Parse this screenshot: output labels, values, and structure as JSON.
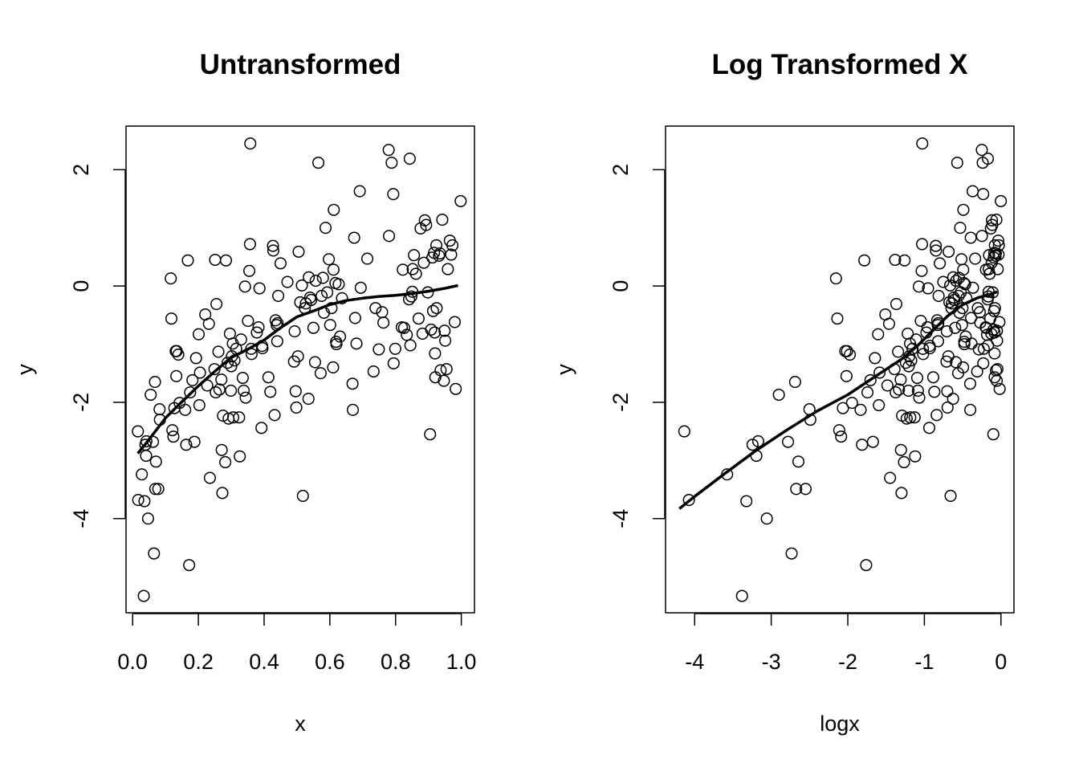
{
  "chart_data": [
    {
      "type": "scatter",
      "title": "Untransformed",
      "xlabel": "x",
      "ylabel": "y",
      "xlim": [
        -0.02,
        1.04
      ],
      "ylim": [
        -5.62,
        2.75
      ],
      "xticks": [
        0.0,
        0.2,
        0.4,
        0.6,
        0.8,
        1.0
      ],
      "xtick_labels": [
        "0.0",
        "0.2",
        "0.4",
        "0.6",
        "0.8",
        "1.0"
      ],
      "yticks": [
        -4,
        -2,
        0,
        2
      ],
      "ytick_labels": [
        "-4",
        "-2",
        "0",
        "2"
      ],
      "grid": false,
      "points": [
        [
          0.016,
          -2.5
        ],
        [
          0.017,
          -3.68
        ],
        [
          0.028,
          -3.24
        ],
        [
          0.034,
          -5.33
        ],
        [
          0.036,
          -3.7
        ],
        [
          0.039,
          -2.73
        ],
        [
          0.041,
          -2.92
        ],
        [
          0.042,
          -2.67
        ],
        [
          0.047,
          -4.0
        ],
        [
          0.055,
          -1.87
        ],
        [
          0.062,
          -2.68
        ],
        [
          0.065,
          -4.6
        ],
        [
          0.068,
          -1.65
        ],
        [
          0.069,
          -3.49
        ],
        [
          0.071,
          -3.02
        ],
        [
          0.078,
          -3.49
        ],
        [
          0.082,
          -2.12
        ],
        [
          0.083,
          -2.3
        ],
        [
          0.116,
          0.13
        ],
        [
          0.118,
          -0.56
        ],
        [
          0.121,
          -2.48
        ],
        [
          0.124,
          -2.59
        ],
        [
          0.127,
          -2.1
        ],
        [
          0.131,
          -1.12
        ],
        [
          0.133,
          -1.55
        ],
        [
          0.134,
          -1.12
        ],
        [
          0.139,
          -1.18
        ],
        [
          0.143,
          -2.01
        ],
        [
          0.16,
          -2.13
        ],
        [
          0.163,
          -2.73
        ],
        [
          0.168,
          0.44
        ],
        [
          0.172,
          -4.8
        ],
        [
          0.175,
          -1.83
        ],
        [
          0.182,
          -1.62
        ],
        [
          0.188,
          -2.68
        ],
        [
          0.193,
          -1.24
        ],
        [
          0.201,
          -0.83
        ],
        [
          0.203,
          -2.05
        ],
        [
          0.205,
          -1.49
        ],
        [
          0.221,
          -0.49
        ],
        [
          0.227,
          -1.71
        ],
        [
          0.232,
          -0.65
        ],
        [
          0.235,
          -3.3
        ],
        [
          0.249,
          -1.43
        ],
        [
          0.251,
          0.45
        ],
        [
          0.253,
          -1.83
        ],
        [
          0.255,
          -0.31
        ],
        [
          0.261,
          -1.13
        ],
        [
          0.264,
          -1.78
        ],
        [
          0.27,
          -1.61
        ],
        [
          0.271,
          -2.82
        ],
        [
          0.273,
          -3.56
        ],
        [
          0.275,
          -2.23
        ],
        [
          0.282,
          -3.03
        ],
        [
          0.284,
          0.44
        ],
        [
          0.289,
          -1.32
        ],
        [
          0.292,
          -2.28
        ],
        [
          0.296,
          -0.82
        ],
        [
          0.299,
          -1.8
        ],
        [
          0.3,
          -1.38
        ],
        [
          0.302,
          -1.21
        ],
        [
          0.305,
          -0.99
        ],
        [
          0.306,
          -2.26
        ],
        [
          0.31,
          -1.28
        ],
        [
          0.315,
          -1.08
        ],
        [
          0.324,
          -2.26
        ],
        [
          0.326,
          -2.93
        ],
        [
          0.33,
          -0.92
        ],
        [
          0.335,
          -1.58
        ],
        [
          0.338,
          -1.8
        ],
        [
          0.342,
          -0.01
        ],
        [
          0.344,
          -1.92
        ],
        [
          0.351,
          -0.6
        ],
        [
          0.355,
          0.26
        ],
        [
          0.357,
          0.72
        ],
        [
          0.358,
          2.45
        ],
        [
          0.361,
          -1.08
        ],
        [
          0.362,
          -1.17
        ],
        [
          0.378,
          -0.8
        ],
        [
          0.383,
          -0.71
        ],
        [
          0.386,
          -0.04
        ],
        [
          0.392,
          -2.44
        ],
        [
          0.394,
          -1.03
        ],
        [
          0.395,
          -1.07
        ],
        [
          0.413,
          -1.57
        ],
        [
          0.419,
          -1.82
        ],
        [
          0.427,
          0.69
        ],
        [
          0.428,
          0.61
        ],
        [
          0.432,
          -2.22
        ],
        [
          0.435,
          -0.59
        ],
        [
          0.438,
          -0.67
        ],
        [
          0.44,
          -0.95
        ],
        [
          0.441,
          -0.64
        ],
        [
          0.443,
          -0.17
        ],
        [
          0.45,
          0.39
        ],
        [
          0.471,
          0.07
        ],
        [
          0.491,
          -1.3
        ],
        [
          0.493,
          -0.78
        ],
        [
          0.496,
          -1.81
        ],
        [
          0.498,
          -2.09
        ],
        [
          0.503,
          -1.21
        ],
        [
          0.505,
          0.59
        ],
        [
          0.51,
          -0.28
        ],
        [
          0.515,
          0.01
        ],
        [
          0.518,
          -3.61
        ],
        [
          0.524,
          -0.38
        ],
        [
          0.527,
          -0.3
        ],
        [
          0.535,
          -1.94
        ],
        [
          0.536,
          0.15
        ],
        [
          0.54,
          -0.2
        ],
        [
          0.543,
          -0.24
        ],
        [
          0.55,
          -0.72
        ],
        [
          0.555,
          -1.31
        ],
        [
          0.557,
          0.09
        ],
        [
          0.565,
          2.12
        ],
        [
          0.572,
          -1.5
        ],
        [
          0.575,
          -0.17
        ],
        [
          0.579,
          0.14
        ],
        [
          0.582,
          -0.46
        ],
        [
          0.587,
          1.0
        ],
        [
          0.592,
          -0.11
        ],
        [
          0.597,
          0.46
        ],
        [
          0.601,
          -0.67
        ],
        [
          0.605,
          -0.38
        ],
        [
          0.61,
          -1.4
        ],
        [
          0.611,
          0.28
        ],
        [
          0.612,
          1.31
        ],
        [
          0.617,
          0.05
        ],
        [
          0.619,
          -0.96
        ],
        [
          0.62,
          -1.0
        ],
        [
          0.627,
          0.03
        ],
        [
          0.631,
          -0.87
        ],
        [
          0.637,
          -0.21
        ],
        [
          0.669,
          -1.68
        ],
        [
          0.67,
          -2.13
        ],
        [
          0.674,
          0.83
        ],
        [
          0.677,
          -0.55
        ],
        [
          0.681,
          -0.99
        ],
        [
          0.691,
          1.63
        ],
        [
          0.694,
          -0.03
        ],
        [
          0.714,
          0.47
        ],
        [
          0.733,
          -1.47
        ],
        [
          0.739,
          -0.38
        ],
        [
          0.749,
          -1.09
        ],
        [
          0.759,
          -0.45
        ],
        [
          0.763,
          -0.63
        ],
        [
          0.779,
          2.34
        ],
        [
          0.78,
          0.86
        ],
        [
          0.788,
          2.12
        ],
        [
          0.793,
          1.58
        ],
        [
          0.794,
          -1.33
        ],
        [
          0.799,
          -1.08
        ],
        [
          0.819,
          -0.71
        ],
        [
          0.822,
          0.28
        ],
        [
          0.826,
          -0.72
        ],
        [
          0.834,
          -0.84
        ],
        [
          0.841,
          -0.23
        ],
        [
          0.843,
          2.19
        ],
        [
          0.845,
          -1.02
        ],
        [
          0.848,
          -0.18
        ],
        [
          0.851,
          -0.1
        ],
        [
          0.852,
          0.29
        ],
        [
          0.856,
          0.53
        ],
        [
          0.862,
          0.21
        ],
        [
          0.87,
          -0.56
        ],
        [
          0.876,
          0.99
        ],
        [
          0.882,
          -0.82
        ],
        [
          0.886,
          0.4
        ],
        [
          0.889,
          1.13
        ],
        [
          0.893,
          1.05
        ],
        [
          0.898,
          -0.11
        ],
        [
          0.905,
          -2.55
        ],
        [
          0.908,
          -0.75
        ],
        [
          0.912,
          0.49
        ],
        [
          0.914,
          -0.43
        ],
        [
          0.917,
          0.57
        ],
        [
          0.919,
          -0.8
        ],
        [
          0.92,
          -1.16
        ],
        [
          0.921,
          -1.57
        ],
        [
          0.924,
          0.7
        ],
        [
          0.925,
          -0.38
        ],
        [
          0.932,
          0.52
        ],
        [
          0.935,
          0.56
        ],
        [
          0.937,
          -1.45
        ],
        [
          0.942,
          1.14
        ],
        [
          0.947,
          -1.63
        ],
        [
          0.949,
          -0.77
        ],
        [
          0.951,
          -0.94
        ],
        [
          0.955,
          -1.43
        ],
        [
          0.959,
          0.29
        ],
        [
          0.965,
          0.78
        ],
        [
          0.969,
          0.54
        ],
        [
          0.973,
          0.7
        ],
        [
          0.98,
          -0.62
        ],
        [
          0.983,
          -1.77
        ],
        [
          0.998,
          1.46
        ]
      ],
      "smooth": [
        [
          0.016,
          -2.88
        ],
        [
          0.05,
          -2.64
        ],
        [
          0.1,
          -2.27
        ],
        [
          0.15,
          -1.99
        ],
        [
          0.2,
          -1.72
        ],
        [
          0.25,
          -1.47
        ],
        [
          0.3,
          -1.23
        ],
        [
          0.35,
          -1.09
        ],
        [
          0.4,
          -0.93
        ],
        [
          0.45,
          -0.72
        ],
        [
          0.5,
          -0.53
        ],
        [
          0.55,
          -0.43
        ],
        [
          0.6,
          -0.32
        ],
        [
          0.65,
          -0.25
        ],
        [
          0.7,
          -0.21
        ],
        [
          0.75,
          -0.18
        ],
        [
          0.8,
          -0.16
        ],
        [
          0.85,
          -0.13
        ],
        [
          0.9,
          -0.09
        ],
        [
          0.95,
          -0.04
        ],
        [
          0.99,
          0.01
        ]
      ]
    },
    {
      "type": "scatter",
      "title": "Log Transformed X",
      "xlabel": "logx",
      "ylabel": "y",
      "xlim": [
        -4.38,
        0.17
      ],
      "ylim": [
        -5.62,
        2.75
      ],
      "xticks": [
        -4,
        -3,
        -2,
        -1,
        0
      ],
      "xtick_labels": [
        "-4",
        "-3",
        "-2",
        "-1",
        "0"
      ],
      "yticks": [
        -4,
        -2,
        0,
        2
      ],
      "ytick_labels": [
        "-4",
        "-2",
        "0",
        "2"
      ],
      "grid": false,
      "smooth": [
        [
          -4.2,
          -3.83
        ],
        [
          -4.0,
          -3.62
        ],
        [
          -3.6,
          -3.22
        ],
        [
          -3.2,
          -2.83
        ],
        [
          -2.8,
          -2.48
        ],
        [
          -2.4,
          -2.15
        ],
        [
          -2.0,
          -1.87
        ],
        [
          -1.6,
          -1.52
        ],
        [
          -1.3,
          -1.26
        ],
        [
          -1.1,
          -1.04
        ],
        [
          -0.9,
          -0.78
        ],
        [
          -0.7,
          -0.52
        ],
        [
          -0.5,
          -0.32
        ],
        [
          -0.3,
          -0.2
        ],
        [
          -0.15,
          -0.15
        ],
        [
          -0.05,
          -0.1
        ]
      ]
    }
  ]
}
